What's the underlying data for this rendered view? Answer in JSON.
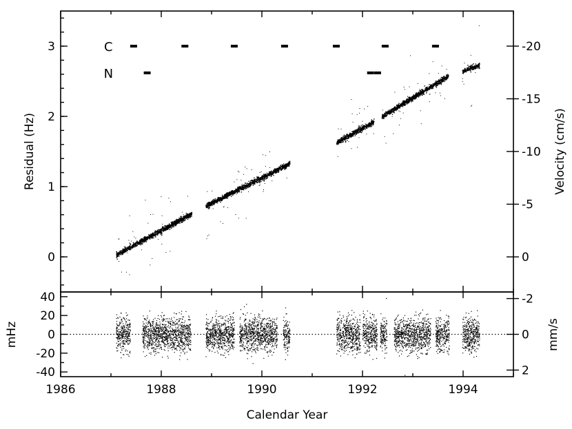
{
  "chart_data": [
    {
      "type": "scatter",
      "panel": "top",
      "xlabel": "",
      "ylabel": "Residual (Hz)",
      "y2label": "Velocity (cm/s)",
      "xlim": [
        1986,
        1995
      ],
      "ylim": [
        -0.5,
        3.5
      ],
      "y2lim": [
        3.33,
        -23.33
      ],
      "xticks": [
        "1986",
        "1988",
        "1990",
        "1992",
        "1994"
      ],
      "yticks": [
        "0",
        "1",
        "2",
        "3"
      ],
      "y2ticks": [
        "0",
        "-5",
        "-10",
        "-15",
        "-20"
      ],
      "y2tick_values": [
        0,
        -5,
        -10,
        -15,
        -20
      ],
      "series": [
        {
          "segments": [
            {
              "x": [
                1987.1,
                1988.6
              ],
              "y": [
                0.03,
                0.62
              ]
            },
            {
              "x": [
                1988.88,
                1990.55
              ],
              "y": [
                0.73,
                1.33
              ]
            },
            {
              "x": [
                1991.48,
                1992.22
              ],
              "y": [
                1.63,
                1.93
              ]
            },
            {
              "x": [
                1992.38,
                1993.7
              ],
              "y": [
                2.0,
                2.58
              ]
            },
            {
              "x": [
                1993.98,
                1994.32
              ],
              "y": [
                2.65,
                2.73
              ]
            }
          ]
        }
      ],
      "marker_rows": [
        {
          "label": "C",
          "y": 3.0,
          "x": [
            1987.45,
            1988.47,
            1989.45,
            1990.45,
            1991.48,
            1992.45,
            1993.45
          ]
        },
        {
          "label": "N",
          "y": 2.62,
          "x": [
            1987.72,
            1992.16,
            1992.3
          ]
        }
      ],
      "dotted_lines": [],
      "grid": false,
      "color": "#000000"
    },
    {
      "type": "scatter",
      "panel": "bottom",
      "xlabel": "Calendar Year",
      "ylabel": "mHz",
      "y2label": "mm/s",
      "xlim": [
        1986,
        1995
      ],
      "ylim": [
        -45,
        45
      ],
      "xticks": [
        "1986",
        "1988",
        "1990",
        "1992",
        "1994"
      ],
      "yticks": [
        "-40",
        "-20",
        "0",
        "20",
        "40"
      ],
      "y2ticks": [
        "-2",
        "0",
        "2"
      ],
      "y2tick_values": [
        -2,
        0,
        2
      ],
      "y2_scale_mHz_per_unit": -19,
      "series": [
        {
          "intervals": [
            [
              1987.1,
              1987.38
            ],
            [
              1987.62,
              1988.58
            ],
            [
              1988.88,
              1989.45
            ],
            [
              1989.55,
              1990.3
            ],
            [
              1990.42,
              1990.55
            ],
            [
              1991.48,
              1991.95
            ],
            [
              1992.0,
              1992.28
            ],
            [
              1992.35,
              1992.48
            ],
            [
              1992.62,
              1993.35
            ],
            [
              1993.45,
              1993.72
            ],
            [
              1993.98,
              1994.32
            ]
          ]
        }
      ],
      "zero_line": "dotted",
      "grid": false,
      "color": "#000000"
    }
  ]
}
